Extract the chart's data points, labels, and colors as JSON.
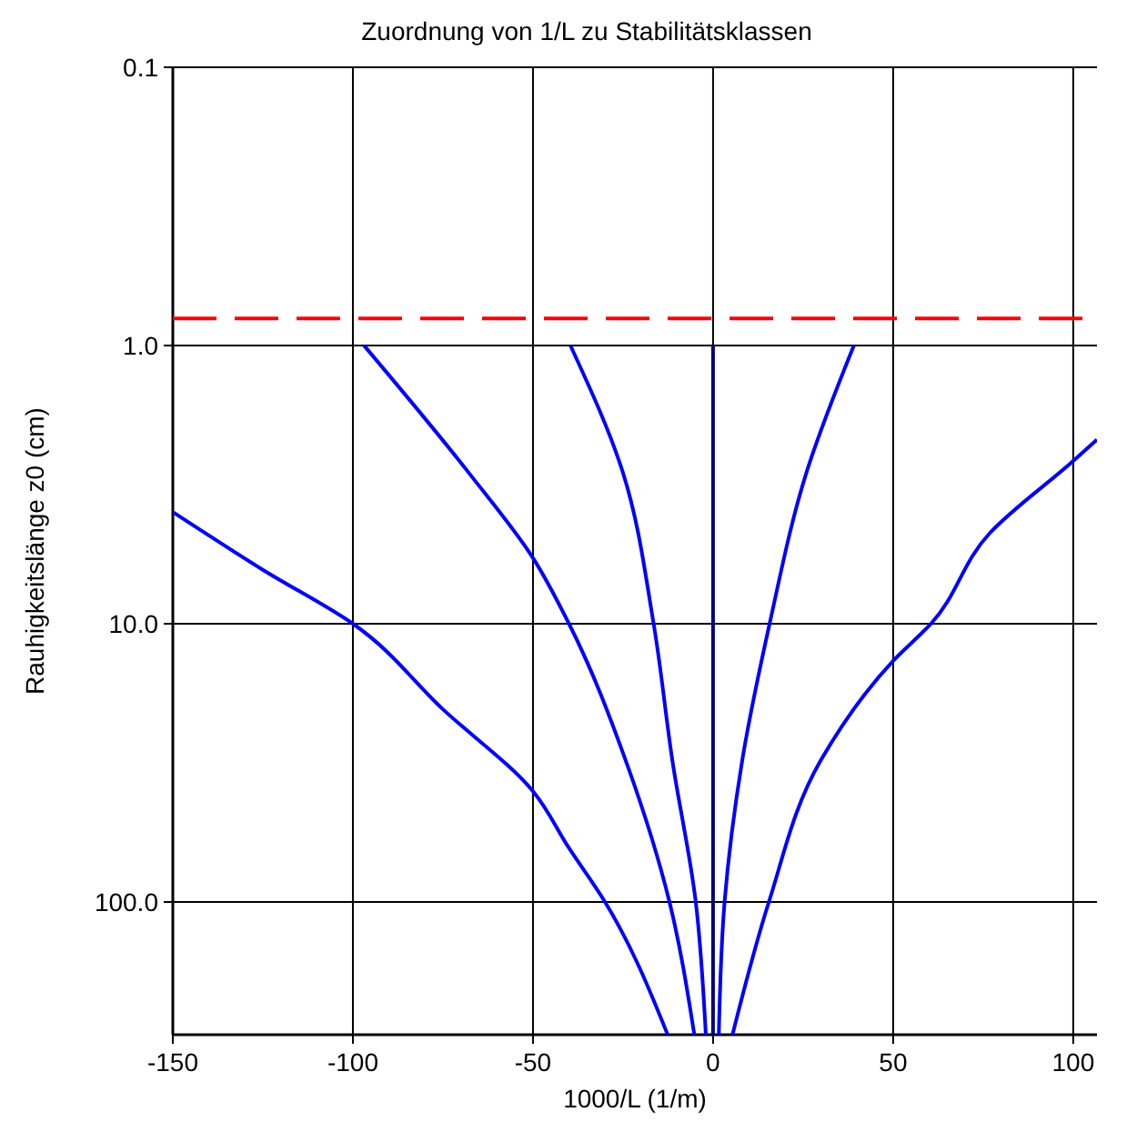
{
  "chart_data": {
    "type": "line",
    "title": "Zuordnung von 1/L zu Stabilitätsklassen",
    "xlabel": "1000/L (1/m)",
    "ylabel": "Rauhigkeitslänge z0 (cm)",
    "log": "y",
    "xlim": [
      -150,
      106.6
    ],
    "xticks": [
      -150,
      -100,
      -50,
      0,
      50,
      100
    ],
    "ylim": [
      300,
      0.1
    ],
    "yticks": [
      {
        "value": 0.1,
        "label": "0.1"
      },
      {
        "value": 1,
        "label": "1.0"
      },
      {
        "value": 10,
        "label": "10.0"
      },
      {
        "value": 100,
        "label": "100.0"
      }
    ],
    "grid": true,
    "line_style": "solid",
    "ref_lines": [
      {
        "axis": "y",
        "value": 0.8,
        "color": "#ff0000",
        "line_style": "dashed"
      }
    ],
    "series": [
      {
        "color": "#0000ff",
        "x": [
          -150,
          -125,
          -100,
          -75,
          -50,
          -40,
          -30,
          -12.6
        ],
        "values": [
          3.97,
          6.4,
          10,
          20.3,
          40,
          64,
          100,
          300
        ]
      },
      {
        "color": "#0000ff",
        "x": [
          -96.9,
          -67.8,
          -50,
          -40,
          -23.4,
          -12.1,
          -5.2
        ],
        "values": [
          1,
          2.87,
          5.8,
          10,
          33.3,
          100,
          300
        ]
      },
      {
        "color": "#0000ff",
        "x": [
          -39.6,
          -25,
          -16.5,
          -11.3,
          -4.8,
          -2
        ],
        "values": [
          1,
          2.87,
          10,
          31,
          100,
          300
        ]
      },
      {
        "color": "#000080",
        "x": [
          0,
          0
        ],
        "values": [
          1,
          300
        ]
      },
      {
        "color": "#0000ff",
        "x": [
          39.1,
          25.9,
          15.7,
          8.1,
          3.2,
          1.6
        ],
        "values": [
          1,
          2.87,
          10,
          31,
          100,
          300
        ]
      },
      {
        "color": "#0000ff",
        "x": [
          106.6,
          100,
          76.8,
          60.5,
          50,
          29.9,
          15.5,
          5.4
        ],
        "values": [
          2.18,
          2.6,
          4.73,
          10,
          13.6,
          31,
          100,
          300
        ]
      }
    ]
  }
}
